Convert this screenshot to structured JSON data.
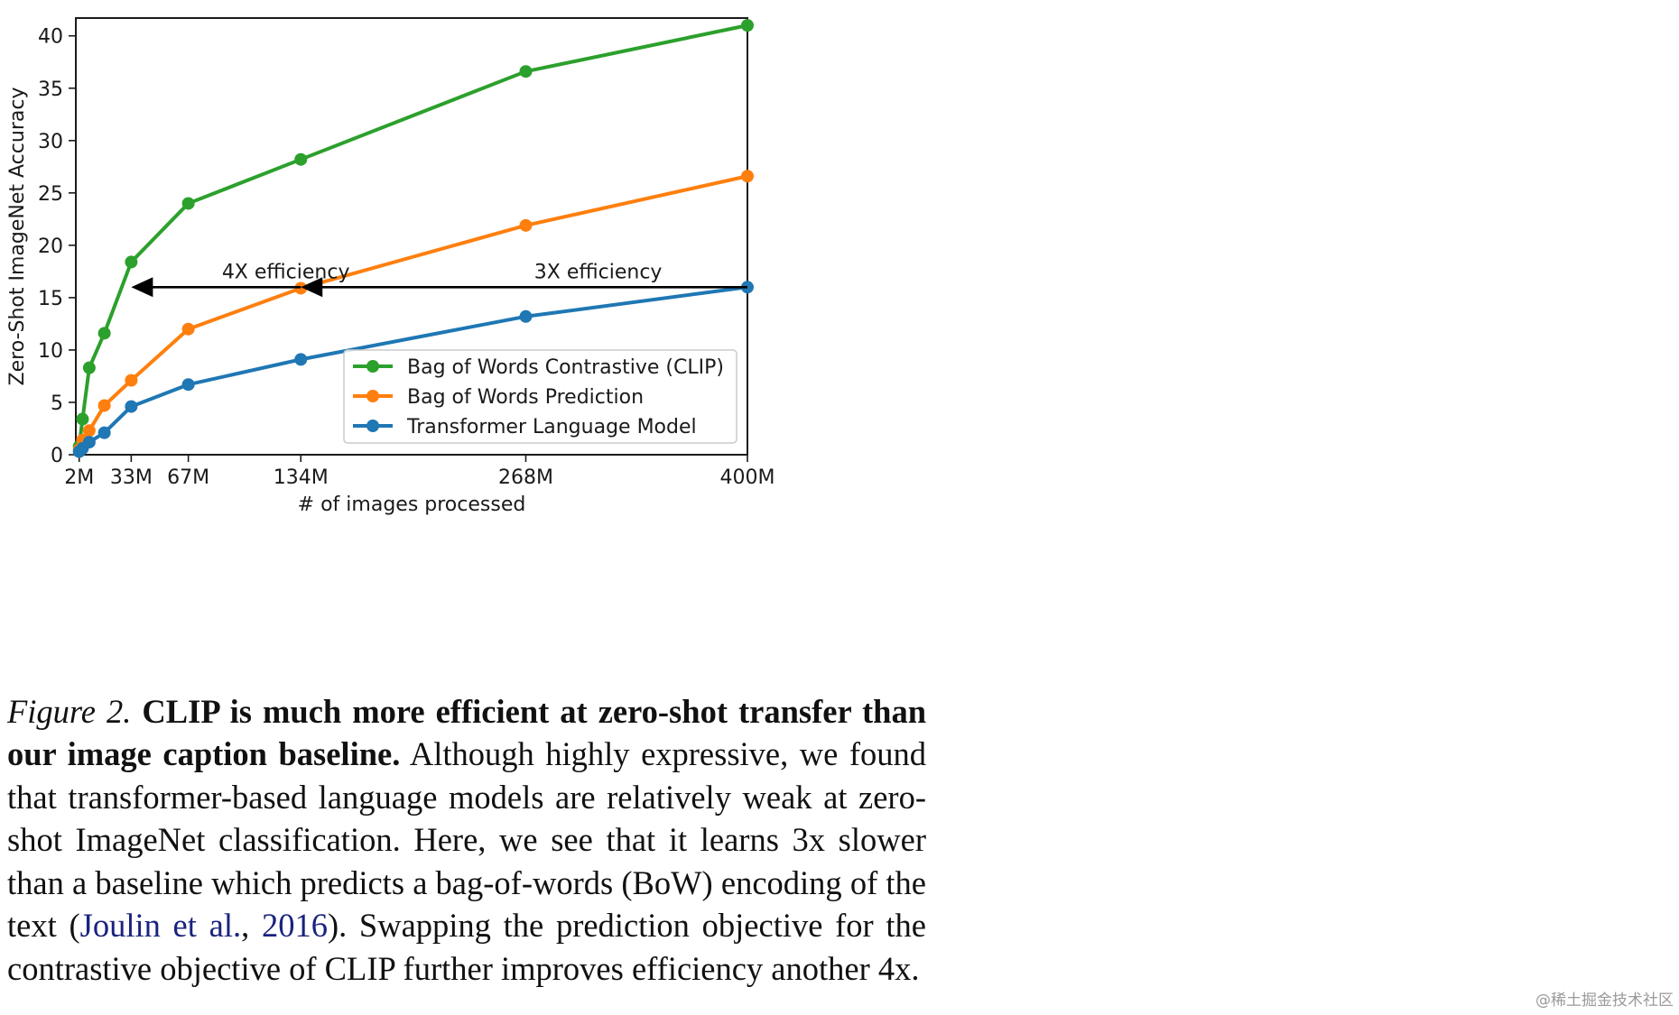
{
  "chart_data": {
    "type": "line",
    "xlabel": "# of images processed",
    "ylabel": "Zero-Shot ImageNet Accuracy",
    "xlim": [
      0,
      400
    ],
    "ylim": [
      0,
      41.7
    ],
    "x_tick_labels": [
      {
        "x": 2,
        "label": "2M"
      },
      {
        "x": 33,
        "label": "33M"
      },
      {
        "x": 67,
        "label": "67M"
      },
      {
        "x": 134,
        "label": "134M"
      },
      {
        "x": 268,
        "label": "268M"
      },
      {
        "x": 400,
        "label": "400M"
      }
    ],
    "y_ticks": [
      0,
      5,
      10,
      15,
      20,
      25,
      30,
      35,
      40
    ],
    "grid": false,
    "legend_position": "lower-right",
    "series": [
      {
        "name": "Bag of Words Contrastive (CLIP)",
        "color": "#2ca02c",
        "x": [
          2,
          4,
          8,
          17,
          33,
          67,
          134,
          268,
          400
        ],
        "y": [
          0.8,
          3.4,
          8.3,
          11.6,
          18.4,
          24.0,
          28.2,
          36.6,
          41.0
        ]
      },
      {
        "name": "Bag of Words Prediction",
        "color": "#ff7f0e",
        "x": [
          2,
          4,
          8,
          17,
          33,
          67,
          134,
          268,
          400
        ],
        "y": [
          0.5,
          1.4,
          2.3,
          4.7,
          7.1,
          12.0,
          15.9,
          21.9,
          26.6
        ]
      },
      {
        "name": "Transformer Language Model",
        "color": "#1f77b4",
        "x": [
          2,
          4,
          8,
          17,
          33,
          67,
          134,
          268,
          400
        ],
        "y": [
          0.3,
          0.6,
          1.2,
          2.1,
          4.6,
          6.7,
          9.1,
          13.2,
          16.0
        ]
      }
    ],
    "annotations": [
      {
        "text": "4X efficiency",
        "text_x": 87,
        "text_y": 17.0,
        "arrow_from_x": 134,
        "arrow_to_x": 33,
        "arrow_y": 16.0
      },
      {
        "text": "3X efficiency",
        "text_x": 273,
        "text_y": 17.0,
        "arrow_from_x": 400,
        "arrow_to_x": 134,
        "arrow_y": 16.0
      }
    ]
  },
  "caption": {
    "label": "Figure 2.",
    "bold": "CLIP is much more efficient at zero-shot transfer than our image caption baseline.",
    "body_before": "Although highly expressive, we found that transformer-based language models are relatively weak at zero-shot ImageNet classification. Here, we see that it learns 3x slower than a baseline which predicts a bag-of-words (BoW) encoding of the text (",
    "cite_author": "Joulin et al.",
    "cite_sep": ", ",
    "cite_year": "2016",
    "body_after": "). Swapping the prediction objective for the contrastive objective of CLIP further improves efficiency another 4x."
  },
  "watermark": "@稀土掘金技术社区"
}
